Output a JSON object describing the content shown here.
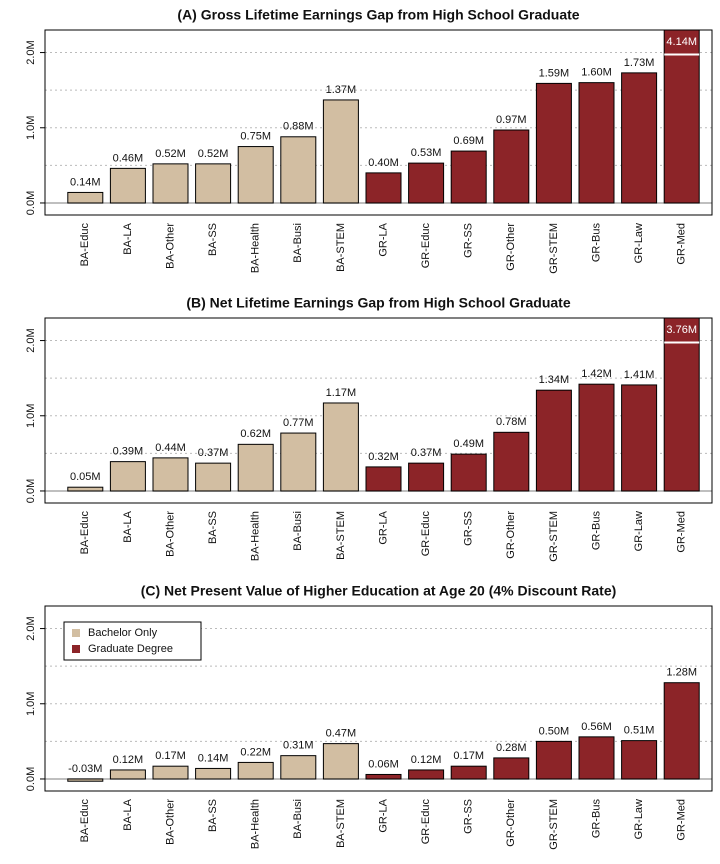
{
  "chart_data": [
    {
      "type": "bar",
      "title": "(A) Gross Lifetime Earnings Gap from High School Graduate",
      "categories": [
        "BA-Educ",
        "BA-LA",
        "BA-Other",
        "BA-SS",
        "BA-Health",
        "BA-Busi",
        "BA-STEM",
        "GR-LA",
        "GR-Educ",
        "GR-SS",
        "GR-Other",
        "GR-STEM",
        "GR-Bus",
        "GR-Law",
        "GR-Med"
      ],
      "series": [
        {
          "color": "#d2bea2",
          "values": [
            0.14,
            0.46,
            0.52,
            0.52,
            0.75,
            0.88,
            1.37,
            null,
            null,
            null,
            null,
            null,
            null,
            null,
            null
          ],
          "value_labels": [
            "0.14M",
            "0.46M",
            "0.52M",
            "0.52M",
            "0.75M",
            "0.88M",
            "1.37M",
            null,
            null,
            null,
            null,
            null,
            null,
            null,
            null
          ]
        },
        {
          "color": "#8c2428",
          "values": [
            null,
            null,
            null,
            null,
            null,
            null,
            null,
            0.4,
            0.53,
            0.69,
            0.97,
            1.59,
            1.6,
            1.73,
            4.14
          ],
          "value_labels": [
            null,
            null,
            null,
            null,
            null,
            null,
            null,
            "0.40M",
            "0.53M",
            "0.69M",
            "0.97M",
            "1.59M",
            "1.60M",
            "1.73M",
            "4.14M"
          ]
        }
      ],
      "ylim": [
        -0.16,
        2.3
      ],
      "yticks": [
        {
          "value": 0,
          "label": "0.0M"
        },
        {
          "value": 1,
          "label": "1.0M"
        },
        {
          "value": 2,
          "label": "2.0M"
        }
      ],
      "minor_grid": [
        0.5,
        1.5
      ],
      "grid": true
    },
    {
      "type": "bar",
      "title": "(B) Net Lifetime Earnings Gap from High School Graduate",
      "categories": [
        "BA-Educ",
        "BA-LA",
        "BA-Other",
        "BA-SS",
        "BA-Health",
        "BA-Busi",
        "BA-STEM",
        "GR-LA",
        "GR-Educ",
        "GR-SS",
        "GR-Other",
        "GR-STEM",
        "GR-Bus",
        "GR-Law",
        "GR-Med"
      ],
      "series": [
        {
          "color": "#d2bea2",
          "values": [
            0.05,
            0.39,
            0.44,
            0.37,
            0.62,
            0.77,
            1.17,
            null,
            null,
            null,
            null,
            null,
            null,
            null,
            null
          ],
          "value_labels": [
            "0.05M",
            "0.39M",
            "0.44M",
            "0.37M",
            "0.62M",
            "0.77M",
            "1.17M",
            null,
            null,
            null,
            null,
            null,
            null,
            null,
            null
          ]
        },
        {
          "color": "#8c2428",
          "values": [
            null,
            null,
            null,
            null,
            null,
            null,
            null,
            0.32,
            0.37,
            0.49,
            0.78,
            1.34,
            1.42,
            1.41,
            3.76
          ],
          "value_labels": [
            null,
            null,
            null,
            null,
            null,
            null,
            null,
            "0.32M",
            "0.37M",
            "0.49M",
            "0.78M",
            "1.34M",
            "1.42M",
            "1.41M",
            "3.76M"
          ]
        }
      ],
      "ylim": [
        -0.16,
        2.3
      ],
      "yticks": [
        {
          "value": 0,
          "label": "0.0M"
        },
        {
          "value": 1,
          "label": "1.0M"
        },
        {
          "value": 2,
          "label": "2.0M"
        }
      ],
      "minor_grid": [
        0.5,
        1.5
      ],
      "grid": true
    },
    {
      "type": "bar",
      "title": "(C) Net Present Value of Higher Education at Age 20 (4% Discount Rate)",
      "categories": [
        "BA-Educ",
        "BA-LA",
        "BA-Other",
        "BA-SS",
        "BA-Health",
        "BA-Busi",
        "BA-STEM",
        "GR-LA",
        "GR-Educ",
        "GR-SS",
        "GR-Other",
        "GR-STEM",
        "GR-Bus",
        "GR-Law",
        "GR-Med"
      ],
      "series": [
        {
          "name": "Bachelor Only",
          "color": "#d2bea2",
          "values": [
            -0.03,
            0.12,
            0.17,
            0.14,
            0.22,
            0.31,
            0.47,
            null,
            null,
            null,
            null,
            null,
            null,
            null,
            null
          ],
          "value_labels": [
            "-0.03M",
            "0.12M",
            "0.17M",
            "0.14M",
            "0.22M",
            "0.31M",
            "0.47M",
            null,
            null,
            null,
            null,
            null,
            null,
            null,
            null
          ]
        },
        {
          "name": "Graduate Degree",
          "color": "#8c2428",
          "values": [
            null,
            null,
            null,
            null,
            null,
            null,
            null,
            0.06,
            0.12,
            0.17,
            0.28,
            0.5,
            0.56,
            0.51,
            1.28
          ],
          "value_labels": [
            null,
            null,
            null,
            null,
            null,
            null,
            null,
            "0.06M",
            "0.12M",
            "0.17M",
            "0.28M",
            "0.50M",
            "0.56M",
            "0.51M",
            "1.28M"
          ]
        }
      ],
      "ylim": [
        -0.16,
        2.3
      ],
      "yticks": [
        {
          "value": 0,
          "label": "0.0M"
        },
        {
          "value": 1,
          "label": "1.0M"
        },
        {
          "value": 2,
          "label": "2.0M"
        }
      ],
      "minor_grid": [
        0.5,
        1.5
      ],
      "grid": true,
      "legend": "top-left"
    }
  ]
}
